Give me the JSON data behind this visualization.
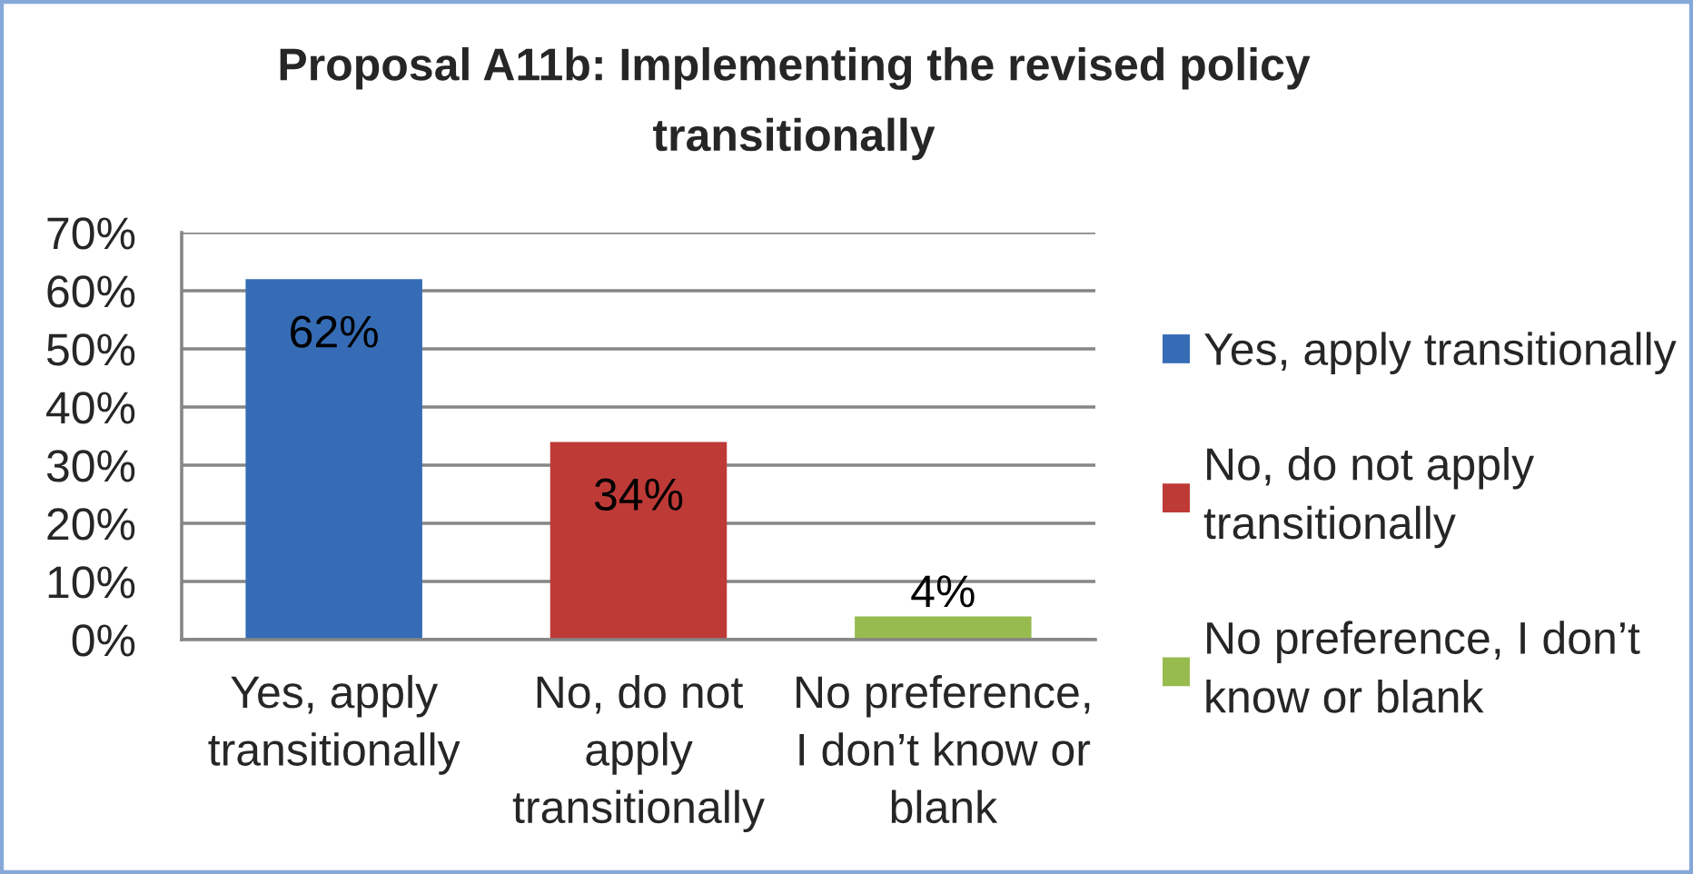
{
  "chart_data": {
    "type": "bar",
    "title": "Proposal A11b: Implementing the revised policy transitionally",
    "categories": [
      "Yes, apply transitionally",
      "No, do not apply transitionally",
      "No preference, I don’t know or blank"
    ],
    "stacked": true,
    "series": [
      {
        "name": "Yes, apply transitionally",
        "color": "#356cb5",
        "values": [
          62,
          null,
          null
        ],
        "value_labels": [
          "62%",
          null,
          null
        ]
      },
      {
        "name": "No, do not apply transitionally",
        "color": "#be3a37",
        "values": [
          null,
          34,
          null
        ],
        "value_labels": [
          null,
          "34%",
          null
        ]
      },
      {
        "name": "No preference, I don’t know or blank",
        "color": "#98bb50",
        "values": [
          null,
          null,
          4
        ],
        "value_labels": [
          null,
          null,
          "4%"
        ]
      }
    ],
    "ylim": [
      0,
      70
    ],
    "yticks": [
      {
        "value": 0,
        "label": "0%"
      },
      {
        "value": 10,
        "label": "10%"
      },
      {
        "value": 20,
        "label": "20%"
      },
      {
        "value": 30,
        "label": "30%"
      },
      {
        "value": 40,
        "label": "40%"
      },
      {
        "value": 50,
        "label": "50%"
      },
      {
        "value": 60,
        "label": "60%"
      },
      {
        "value": 70,
        "label": "70%"
      }
    ],
    "grid": "y",
    "legend": "right"
  }
}
